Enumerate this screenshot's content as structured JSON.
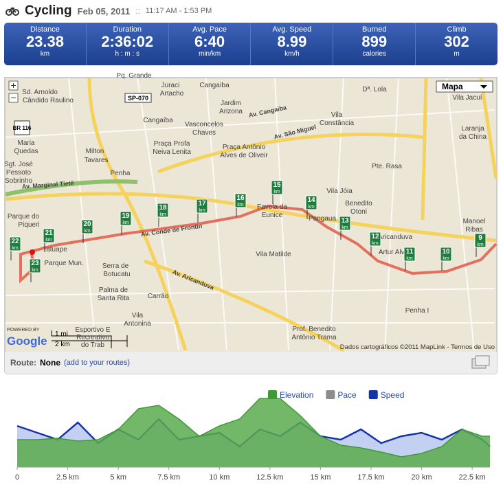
{
  "header": {
    "title": "Cycling",
    "date": "Feb 05, 2011",
    "separator": "::",
    "time": "11:17 AM - 1:53 PM"
  },
  "stats": [
    {
      "label": "Distance",
      "value": 23.38,
      "unit": "km"
    },
    {
      "label": "Duration",
      "value": "2:36:02",
      "unit": "h : m : s"
    },
    {
      "label": "Avg. Pace",
      "value": "6:40",
      "unit": "min/km"
    },
    {
      "label": "Avg. Speed",
      "value": 8.99,
      "unit": "km/h"
    },
    {
      "label": "Burned",
      "value": 899,
      "unit": "calories"
    },
    {
      "label": "Climb",
      "value": 302,
      "unit": "m"
    }
  ],
  "map": {
    "control": "Mapa",
    "shields": [
      "SP-070",
      "BR 116"
    ],
    "scale": [
      "1 mi",
      "2 km"
    ],
    "powered": "POWERED BY",
    "brand": "Google",
    "copyright": "Dados cartográficos ©2011 MapLink - Termos de Uso",
    "markers": [
      "22",
      "21",
      "20",
      "19",
      "18",
      "17",
      "16",
      "15",
      "14",
      "13",
      "12",
      "11",
      "10",
      "9",
      "23"
    ],
    "marker_unit": "km",
    "labels": [
      "Pq. Grande",
      "Juraci",
      "Artacho",
      "Cangaíba",
      "Jardim",
      "Arizona",
      "Dª. Lola",
      "Vila Jacuí",
      "Sd. Arnoldo",
      "Cândido Raulino",
      "Vila",
      "Constância",
      "Cangaíba",
      "Vasconcelos",
      "Chaves",
      "Laranja",
      "da China",
      "Maria",
      "Quedas",
      "Milton",
      "Tavares",
      "Praça Profa",
      "Neiva Lenita",
      "Praça Antônio",
      "Alves de Oliveir",
      "Sgt. José",
      "Pessoto",
      "Sobrinho",
      "Pte. Rasa",
      "Penha",
      "Vila Jóia",
      "Benedito",
      "Otoni",
      "Favela da",
      "Eunice",
      "Pangaua",
      "Parque do",
      "Piqueri",
      "Manoel",
      "Ribas",
      "Tatuape",
      "Vila Matilde",
      "Aricanduva",
      "Artur Alvim",
      "Parque Mun.",
      "Serra de",
      "Botucatu",
      "Palma de",
      "Santa Rita",
      "Carrão",
      "Vila",
      "Antonina",
      "Penha I",
      "Prof. Benedito",
      "Antônio Trama",
      "Esportivo E",
      "Recreativo",
      "do Trab",
      "Av. Conde de Frontin",
      "Av. Marginal Tietê",
      "Av. Aricanduva",
      "Av. Cangaiba",
      "Av. São Miguel"
    ]
  },
  "route": {
    "label": "Route:",
    "name": "None",
    "link": "(add to your routes)"
  },
  "chart_data": {
    "type": "area",
    "x": [
      0,
      1,
      2,
      3,
      4,
      5,
      6,
      7,
      8,
      9,
      10,
      11,
      12,
      13,
      14,
      15,
      16,
      17,
      18,
      19,
      20,
      21,
      22,
      23,
      23.38
    ],
    "series": [
      {
        "name": "Elevation",
        "color": "#3f9a36",
        "values": [
          40,
          40,
          42,
          38,
          40,
          55,
          85,
          90,
          70,
          45,
          60,
          70,
          100,
          100,
          75,
          45,
          32,
          28,
          22,
          15,
          20,
          30,
          55,
          45,
          45
        ]
      },
      {
        "name": "Pace",
        "color": "#8c8c8c",
        "values": [
          null,
          null,
          null,
          null,
          null,
          null,
          null,
          null,
          null,
          null,
          null,
          null,
          null,
          null,
          null,
          null,
          null,
          null,
          null,
          null,
          null,
          null,
          null,
          null,
          null
        ]
      },
      {
        "name": "Speed",
        "color": "#1533a8",
        "values": [
          60,
          50,
          40,
          65,
          35,
          55,
          40,
          70,
          40,
          45,
          50,
          30,
          55,
          45,
          65,
          45,
          40,
          55,
          35,
          45,
          50,
          40,
          55,
          40,
          30
        ]
      }
    ],
    "xlim": [
      0,
      23.38
    ],
    "ylim": [
      0,
      110
    ],
    "xticks": [
      0,
      {
        "value": 2.5,
        "label": "2.5 km"
      },
      {
        "value": 5,
        "label": "5 km"
      },
      {
        "value": 7.5,
        "label": "7.5 km"
      },
      {
        "value": 10,
        "label": "10 km"
      },
      {
        "value": 12.5,
        "label": "12.5 km"
      },
      {
        "value": 15,
        "label": "15 km"
      },
      {
        "value": 17.5,
        "label": "17.5 km"
      },
      {
        "value": 20,
        "label": "20 km"
      },
      {
        "value": 22.5,
        "label": "22.5 km"
      }
    ]
  }
}
